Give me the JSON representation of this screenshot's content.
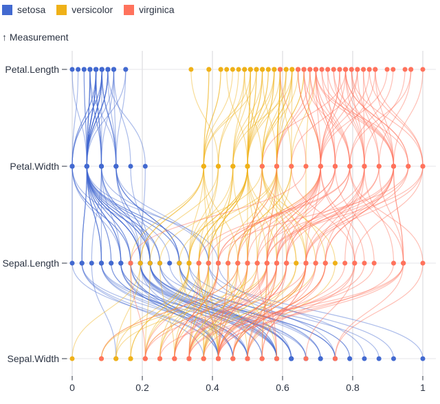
{
  "legend": {
    "items": [
      {
        "label": "setosa",
        "color": "#4269d0"
      },
      {
        "label": "versicolor",
        "color": "#efb118"
      },
      {
        "label": "virginica",
        "color": "#ff725c"
      }
    ]
  },
  "y_axis_title": "↑ Measurement",
  "colors": {
    "background": "#ffffff",
    "grid": "#d4d4d8",
    "row_rule": "#e4e4e8",
    "text": "#2b3342"
  },
  "chart_data": {
    "type": "line",
    "variant": "parallel-coordinates",
    "title": "",
    "xlabel": "",
    "ylabel": "Measurement",
    "x_scale": {
      "domain": [
        0,
        1
      ],
      "ticks": [
        0,
        0.2,
        0.4,
        0.6,
        0.8,
        1
      ],
      "tick_labels": [
        "0",
        "0.2",
        "0.4",
        "0.6",
        "0.8",
        "1"
      ],
      "grid": true
    },
    "axes": [
      {
        "label": "Petal.Length",
        "col": 2,
        "min": 1.0,
        "max": 6.9
      },
      {
        "label": "Petal.Width",
        "col": 3,
        "min": 0.1,
        "max": 2.5
      },
      {
        "label": "Sepal.Length",
        "col": 0,
        "min": 4.3,
        "max": 7.9
      },
      {
        "label": "Sepal.Width",
        "col": 1,
        "min": 2.0,
        "max": 4.4
      }
    ],
    "columns": [
      "Sepal.Length",
      "Sepal.Width",
      "Petal.Length",
      "Petal.Width"
    ],
    "legend_position": "top-left",
    "series": [
      {
        "name": "setosa",
        "color": "#4269d0",
        "rows": [
          [
            5.1,
            3.5,
            1.4,
            0.2
          ],
          [
            4.9,
            3.0,
            1.4,
            0.2
          ],
          [
            4.7,
            3.2,
            1.3,
            0.2
          ],
          [
            4.6,
            3.1,
            1.5,
            0.2
          ],
          [
            5.0,
            3.6,
            1.4,
            0.2
          ],
          [
            5.4,
            3.9,
            1.7,
            0.4
          ],
          [
            4.6,
            3.4,
            1.4,
            0.3
          ],
          [
            5.0,
            3.4,
            1.5,
            0.2
          ],
          [
            4.4,
            2.9,
            1.4,
            0.2
          ],
          [
            4.9,
            3.1,
            1.5,
            0.1
          ],
          [
            5.4,
            3.7,
            1.5,
            0.2
          ],
          [
            4.8,
            3.4,
            1.6,
            0.2
          ],
          [
            4.8,
            3.0,
            1.4,
            0.1
          ],
          [
            4.3,
            3.0,
            1.1,
            0.1
          ],
          [
            5.8,
            4.0,
            1.2,
            0.2
          ],
          [
            5.7,
            4.4,
            1.5,
            0.4
          ],
          [
            5.4,
            3.9,
            1.3,
            0.4
          ],
          [
            5.1,
            3.5,
            1.4,
            0.3
          ],
          [
            5.7,
            3.8,
            1.7,
            0.3
          ],
          [
            5.1,
            3.8,
            1.5,
            0.3
          ],
          [
            5.4,
            3.4,
            1.7,
            0.2
          ],
          [
            5.1,
            3.7,
            1.5,
            0.4
          ],
          [
            4.6,
            3.6,
            1.0,
            0.2
          ],
          [
            5.1,
            3.3,
            1.7,
            0.5
          ],
          [
            4.8,
            3.4,
            1.9,
            0.2
          ],
          [
            5.0,
            3.0,
            1.6,
            0.2
          ],
          [
            5.0,
            3.4,
            1.6,
            0.4
          ],
          [
            5.2,
            3.5,
            1.5,
            0.2
          ],
          [
            5.2,
            3.4,
            1.4,
            0.2
          ],
          [
            4.7,
            3.2,
            1.6,
            0.2
          ],
          [
            4.8,
            3.1,
            1.6,
            0.2
          ],
          [
            5.4,
            3.4,
            1.5,
            0.4
          ],
          [
            5.2,
            4.1,
            1.5,
            0.1
          ],
          [
            5.5,
            4.2,
            1.4,
            0.2
          ],
          [
            4.9,
            3.1,
            1.5,
            0.2
          ],
          [
            5.0,
            3.2,
            1.2,
            0.2
          ],
          [
            5.5,
            3.5,
            1.3,
            0.2
          ],
          [
            4.9,
            3.6,
            1.4,
            0.1
          ],
          [
            4.4,
            3.0,
            1.3,
            0.2
          ],
          [
            5.1,
            3.4,
            1.5,
            0.2
          ],
          [
            5.0,
            3.5,
            1.3,
            0.3
          ],
          [
            4.5,
            2.3,
            1.3,
            0.3
          ],
          [
            4.4,
            3.2,
            1.3,
            0.2
          ],
          [
            5.0,
            3.5,
            1.6,
            0.6
          ],
          [
            5.1,
            3.8,
            1.9,
            0.4
          ],
          [
            4.8,
            3.0,
            1.4,
            0.3
          ],
          [
            5.1,
            3.8,
            1.6,
            0.2
          ],
          [
            4.6,
            3.2,
            1.4,
            0.2
          ],
          [
            5.3,
            3.7,
            1.5,
            0.2
          ],
          [
            5.0,
            3.3,
            1.4,
            0.2
          ]
        ]
      },
      {
        "name": "versicolor",
        "color": "#efb118",
        "rows": [
          [
            7.0,
            3.2,
            4.7,
            1.4
          ],
          [
            6.4,
            3.2,
            4.5,
            1.5
          ],
          [
            6.9,
            3.1,
            4.9,
            1.5
          ],
          [
            5.5,
            2.3,
            4.0,
            1.3
          ],
          [
            6.5,
            2.8,
            4.6,
            1.5
          ],
          [
            5.7,
            2.8,
            4.5,
            1.3
          ],
          [
            6.3,
            3.3,
            4.7,
            1.6
          ],
          [
            4.9,
            2.4,
            3.3,
            1.0
          ],
          [
            6.6,
            2.9,
            4.6,
            1.3
          ],
          [
            5.2,
            2.7,
            3.9,
            1.4
          ],
          [
            5.0,
            2.0,
            3.5,
            1.0
          ],
          [
            5.9,
            3.0,
            4.2,
            1.5
          ],
          [
            6.0,
            2.2,
            4.0,
            1.0
          ],
          [
            6.1,
            2.9,
            4.7,
            1.4
          ],
          [
            5.6,
            2.9,
            3.6,
            1.3
          ],
          [
            6.7,
            3.1,
            4.4,
            1.4
          ],
          [
            5.6,
            3.0,
            4.5,
            1.5
          ],
          [
            5.8,
            2.7,
            4.1,
            1.0
          ],
          [
            6.2,
            2.2,
            4.5,
            1.5
          ],
          [
            5.6,
            2.5,
            3.9,
            1.1
          ],
          [
            5.9,
            3.2,
            4.8,
            1.8
          ],
          [
            6.1,
            2.8,
            4.0,
            1.3
          ],
          [
            6.3,
            2.5,
            4.9,
            1.5
          ],
          [
            6.1,
            2.8,
            4.7,
            1.2
          ],
          [
            6.4,
            2.9,
            4.3,
            1.3
          ],
          [
            6.6,
            3.0,
            4.4,
            1.4
          ],
          [
            6.8,
            2.8,
            4.8,
            1.4
          ],
          [
            6.7,
            3.0,
            5.0,
            1.7
          ],
          [
            6.0,
            2.9,
            4.5,
            1.5
          ],
          [
            5.7,
            2.6,
            3.5,
            1.0
          ],
          [
            5.5,
            2.4,
            3.8,
            1.1
          ],
          [
            5.5,
            2.4,
            3.7,
            1.0
          ],
          [
            5.8,
            2.7,
            3.9,
            1.2
          ],
          [
            6.0,
            2.7,
            5.1,
            1.6
          ],
          [
            5.4,
            3.0,
            4.5,
            1.5
          ],
          [
            6.0,
            3.4,
            4.5,
            1.6
          ],
          [
            6.7,
            3.1,
            4.7,
            1.5
          ],
          [
            6.3,
            2.3,
            4.4,
            1.3
          ],
          [
            5.6,
            3.0,
            4.1,
            1.3
          ],
          [
            5.5,
            2.5,
            4.0,
            1.3
          ],
          [
            5.5,
            2.6,
            4.4,
            1.2
          ],
          [
            6.1,
            3.0,
            4.6,
            1.4
          ],
          [
            5.8,
            2.6,
            4.0,
            1.2
          ],
          [
            5.0,
            2.3,
            3.3,
            1.0
          ],
          [
            5.6,
            2.7,
            4.2,
            1.3
          ],
          [
            5.7,
            3.0,
            4.2,
            1.2
          ],
          [
            5.7,
            2.9,
            4.2,
            1.3
          ],
          [
            6.2,
            2.9,
            4.3,
            1.3
          ],
          [
            5.1,
            2.5,
            3.0,
            1.1
          ],
          [
            5.7,
            2.8,
            4.1,
            1.3
          ]
        ]
      },
      {
        "name": "virginica",
        "color": "#ff725c",
        "rows": [
          [
            6.3,
            3.3,
            6.0,
            2.5
          ],
          [
            5.8,
            2.7,
            5.1,
            1.9
          ],
          [
            7.1,
            3.0,
            5.9,
            2.1
          ],
          [
            6.3,
            2.9,
            5.6,
            1.8
          ],
          [
            6.5,
            3.0,
            5.8,
            2.2
          ],
          [
            7.6,
            3.0,
            6.6,
            2.1
          ],
          [
            4.9,
            2.5,
            4.5,
            1.7
          ],
          [
            7.3,
            2.9,
            6.3,
            1.8
          ],
          [
            6.7,
            2.5,
            5.8,
            1.8
          ],
          [
            7.2,
            3.6,
            6.1,
            2.5
          ],
          [
            6.5,
            3.2,
            5.1,
            2.0
          ],
          [
            6.4,
            2.7,
            5.3,
            1.9
          ],
          [
            6.8,
            3.0,
            5.5,
            2.1
          ],
          [
            5.7,
            2.5,
            5.0,
            2.0
          ],
          [
            5.8,
            2.8,
            5.1,
            2.4
          ],
          [
            6.4,
            3.2,
            5.3,
            2.3
          ],
          [
            6.5,
            3.0,
            5.5,
            1.8
          ],
          [
            7.7,
            3.8,
            6.7,
            2.2
          ],
          [
            7.7,
            2.6,
            6.9,
            2.3
          ],
          [
            6.0,
            2.2,
            5.0,
            1.5
          ],
          [
            6.9,
            3.2,
            5.7,
            2.3
          ],
          [
            5.6,
            2.8,
            4.9,
            2.0
          ],
          [
            7.7,
            2.8,
            6.7,
            2.0
          ],
          [
            6.3,
            2.7,
            4.9,
            1.8
          ],
          [
            6.7,
            3.3,
            5.7,
            2.1
          ],
          [
            7.2,
            3.2,
            6.0,
            1.8
          ],
          [
            6.2,
            2.8,
            4.8,
            1.8
          ],
          [
            6.1,
            3.0,
            4.9,
            1.8
          ],
          [
            6.4,
            2.8,
            5.6,
            2.1
          ],
          [
            7.2,
            3.0,
            5.8,
            1.6
          ],
          [
            7.4,
            2.8,
            6.1,
            1.9
          ],
          [
            7.9,
            3.8,
            6.4,
            2.0
          ],
          [
            6.4,
            2.8,
            5.6,
            2.2
          ],
          [
            6.3,
            2.8,
            5.1,
            1.5
          ],
          [
            6.1,
            2.6,
            5.6,
            1.4
          ],
          [
            7.7,
            3.0,
            6.1,
            2.3
          ],
          [
            6.3,
            3.4,
            5.6,
            2.4
          ],
          [
            6.4,
            3.1,
            5.5,
            1.8
          ],
          [
            6.0,
            3.0,
            4.8,
            1.8
          ],
          [
            6.9,
            3.1,
            5.4,
            2.1
          ],
          [
            6.7,
            3.1,
            5.6,
            2.4
          ],
          [
            6.9,
            3.1,
            5.1,
            2.3
          ],
          [
            5.8,
            2.7,
            5.1,
            1.9
          ],
          [
            6.8,
            3.2,
            5.9,
            2.3
          ],
          [
            6.7,
            3.3,
            5.7,
            2.5
          ],
          [
            6.7,
            3.0,
            5.2,
            2.3
          ],
          [
            6.3,
            2.5,
            5.0,
            1.9
          ],
          [
            6.5,
            3.0,
            5.2,
            2.0
          ],
          [
            6.2,
            3.4,
            5.4,
            2.3
          ],
          [
            5.9,
            3.0,
            5.1,
            1.8
          ]
        ]
      }
    ]
  }
}
